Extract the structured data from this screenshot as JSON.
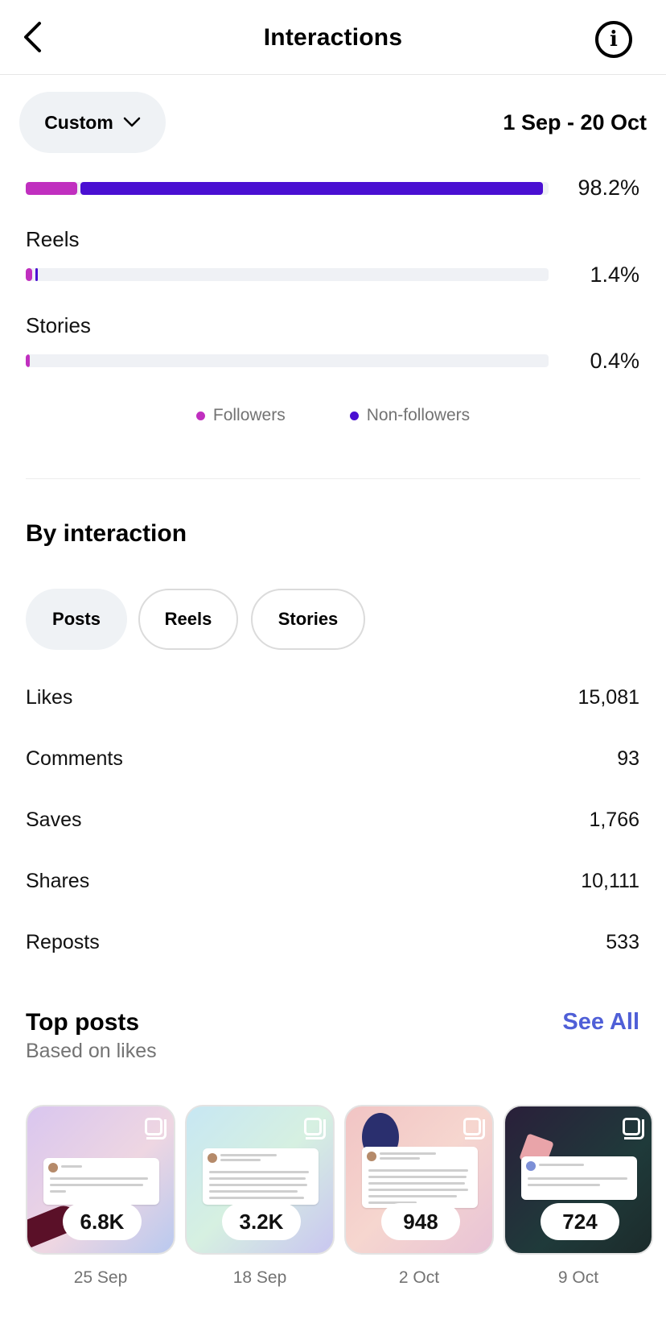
{
  "header": {
    "title": "Interactions",
    "back_icon": "chevron-left-icon",
    "info_icon": "info-icon"
  },
  "filter": {
    "range_button": "Custom",
    "date_range": "1 Sep - 20 Oct"
  },
  "content_breakdown": {
    "rows": [
      {
        "label": "",
        "percent": "98.2%",
        "followers_share": 0.098,
        "non_followers_share": 0.884
      },
      {
        "label": "Reels",
        "percent": "1.4%",
        "followers_share": 0.012,
        "non_followers_share": 0.002
      },
      {
        "label": "Stories",
        "percent": "0.4%",
        "followers_share": 0.004,
        "non_followers_share": 0.0
      }
    ],
    "legend": [
      {
        "label": "Followers",
        "color": "#c02fbf"
      },
      {
        "label": "Non-followers",
        "color": "#4a0fd2"
      }
    ]
  },
  "by_interaction": {
    "title": "By interaction",
    "tabs": [
      "Posts",
      "Reels",
      "Stories"
    ],
    "active_tab": "Posts",
    "metrics": [
      {
        "label": "Likes",
        "value": "15,081"
      },
      {
        "label": "Comments",
        "value": "93"
      },
      {
        "label": "Saves",
        "value": "1,766"
      },
      {
        "label": "Shares",
        "value": "10,111"
      },
      {
        "label": "Reposts",
        "value": "533"
      }
    ]
  },
  "top_posts": {
    "title": "Top posts",
    "see_all": "See All",
    "subtitle": "Based on likes",
    "posts": [
      {
        "count": "6.8K",
        "date": "25 Sep"
      },
      {
        "count": "3.2K",
        "date": "18 Sep"
      },
      {
        "count": "948",
        "date": "2 Oct"
      },
      {
        "count": "724",
        "date": "9 Oct"
      }
    ]
  }
}
